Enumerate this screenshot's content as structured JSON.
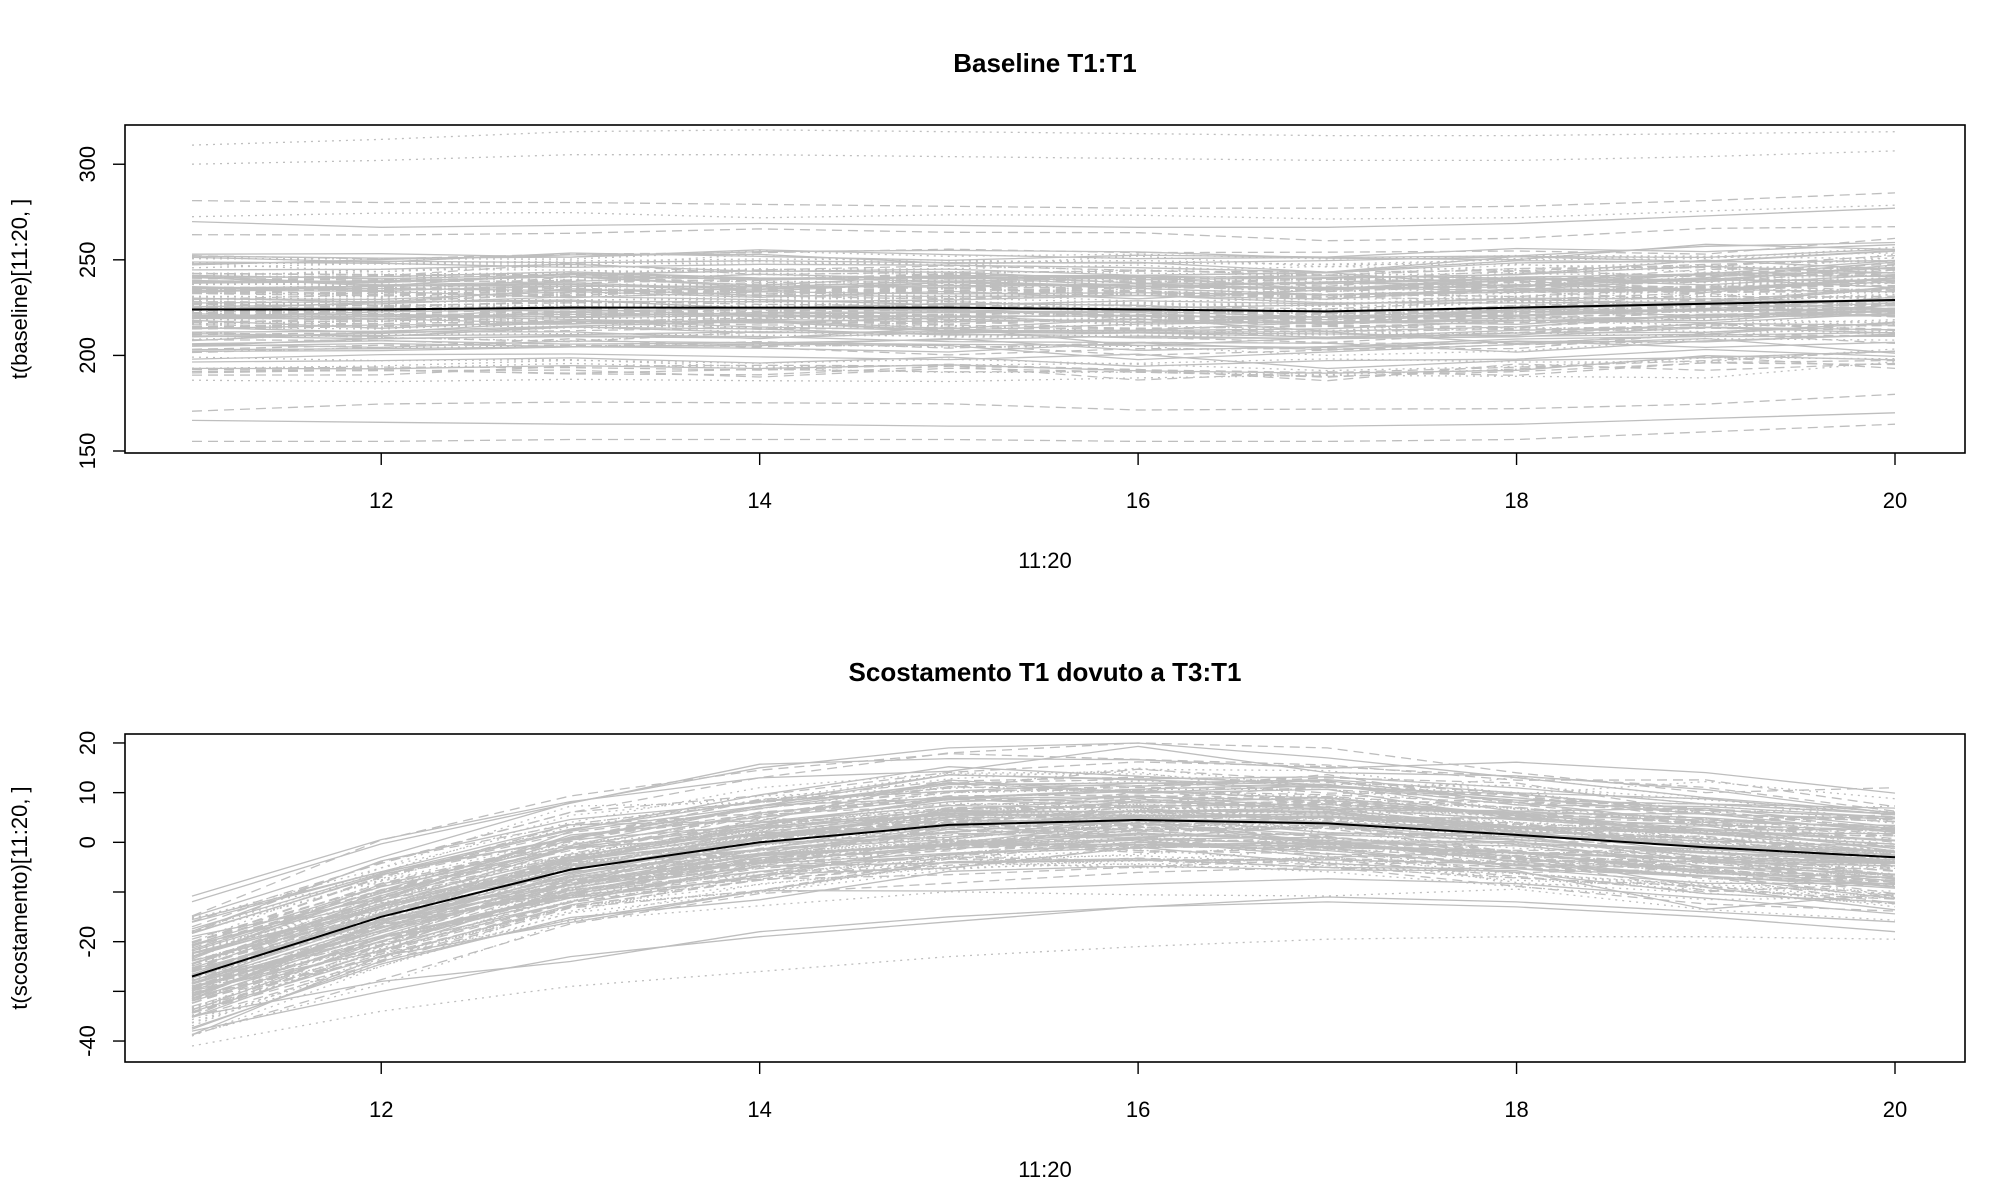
{
  "colors": {
    "background": "#ffffff",
    "spaghetti": "#bebebe",
    "mean": "#000000",
    "axis": "#000000"
  },
  "chart_data": [
    {
      "type": "line",
      "title": "Baseline T1:T1",
      "xlabel": "11:20",
      "ylabel": "t(baseline)[11:20, ]",
      "x": [
        11,
        12,
        13,
        14,
        15,
        16,
        17,
        18,
        19,
        20
      ],
      "xlim": [
        11,
        20
      ],
      "ylim": [
        150,
        320
      ],
      "x_ticks": [
        12,
        14,
        16,
        18,
        20
      ],
      "x_tick_labels": [
        "12",
        "14",
        "16",
        "18",
        "20"
      ],
      "y_ticks": [
        150,
        200,
        250,
        300
      ],
      "y_tick_labels": [
        "150",
        "200",
        "250",
        "300"
      ],
      "grid": false,
      "series": [
        {
          "role": "mean",
          "color": "#000000",
          "linestyle": "solid",
          "values": [
            224,
            224,
            225,
            225,
            225,
            224,
            223,
            225,
            227,
            229
          ]
        },
        {
          "role": "individual",
          "color": "#bebebe",
          "linestyle": "dotted",
          "values": [
            310,
            313,
            317,
            318,
            317,
            316,
            315,
            315,
            316,
            317
          ]
        },
        {
          "role": "individual",
          "color": "#bebebe",
          "linestyle": "dotted",
          "values": [
            300,
            302,
            305,
            305,
            304,
            303,
            302,
            302,
            304,
            307
          ]
        },
        {
          "role": "individual",
          "color": "#bebebe",
          "linestyle": "dashed",
          "values": [
            281,
            280,
            280,
            279,
            278,
            277,
            277,
            278,
            281,
            285
          ]
        },
        {
          "role": "individual",
          "color": "#bebebe",
          "linestyle": "solid",
          "values": [
            270,
            267,
            268,
            269,
            268,
            267,
            267,
            269,
            273,
            277
          ]
        },
        {
          "role": "individual",
          "color": "#bebebe",
          "linestyle": "solid",
          "values": [
            166,
            165,
            164,
            164,
            163,
            163,
            163,
            164,
            167,
            170
          ]
        },
        {
          "role": "individual",
          "color": "#bebebe",
          "linestyle": "dashed",
          "values": [
            155,
            155,
            156,
            156,
            156,
            155,
            155,
            156,
            160,
            164
          ]
        }
      ]
    },
    {
      "type": "line",
      "title": "Scostamento T1 dovuto a T3:T1",
      "xlabel": "11:20",
      "ylabel": "t(scostamento)[11:20, ]",
      "x": [
        11,
        12,
        13,
        14,
        15,
        16,
        17,
        18,
        19,
        20
      ],
      "xlim": [
        11,
        20
      ],
      "ylim": [
        -41,
        21
      ],
      "x_ticks": [
        12,
        14,
        16,
        18,
        20
      ],
      "x_tick_labels": [
        "12",
        "14",
        "16",
        "18",
        "20"
      ],
      "y_ticks": [
        -40,
        -30,
        -20,
        -10,
        0,
        10,
        20
      ],
      "y_tick_labels": [
        "-40",
        "",
        "-20",
        "",
        "0",
        "10",
        "20"
      ],
      "grid": false,
      "series": [
        {
          "role": "mean",
          "color": "#000000",
          "linestyle": "solid",
          "values": [
            -27,
            -15,
            -5.5,
            0,
            3.5,
            4.5,
            3.8,
            1.5,
            -1,
            -3
          ]
        },
        {
          "role": "individual",
          "color": "#bebebe",
          "linestyle": "solid",
          "values": [
            -15,
            -3,
            8,
            15,
            19,
            20,
            17,
            13,
            9,
            6
          ]
        },
        {
          "role": "individual",
          "color": "#bebebe",
          "linestyle": "dashed",
          "values": [
            -17,
            -4,
            6,
            13,
            18,
            20,
            19,
            14,
            10,
            11
          ]
        },
        {
          "role": "individual",
          "color": "#bebebe",
          "linestyle": "dotted",
          "values": [
            -41,
            -34,
            -29,
            -26,
            -23,
            -21,
            -19.5,
            -19,
            -19,
            -19.5
          ]
        },
        {
          "role": "individual",
          "color": "#bebebe",
          "linestyle": "solid",
          "values": [
            -35,
            -28,
            -24,
            -18,
            -15,
            -13,
            -12,
            -13,
            -15,
            -18
          ]
        },
        {
          "role": "individual",
          "color": "#bebebe",
          "linestyle": "solid",
          "values": [
            -38,
            -30,
            -23,
            -19,
            -16,
            -13,
            -11,
            -12,
            -14,
            -16
          ]
        }
      ]
    }
  ]
}
